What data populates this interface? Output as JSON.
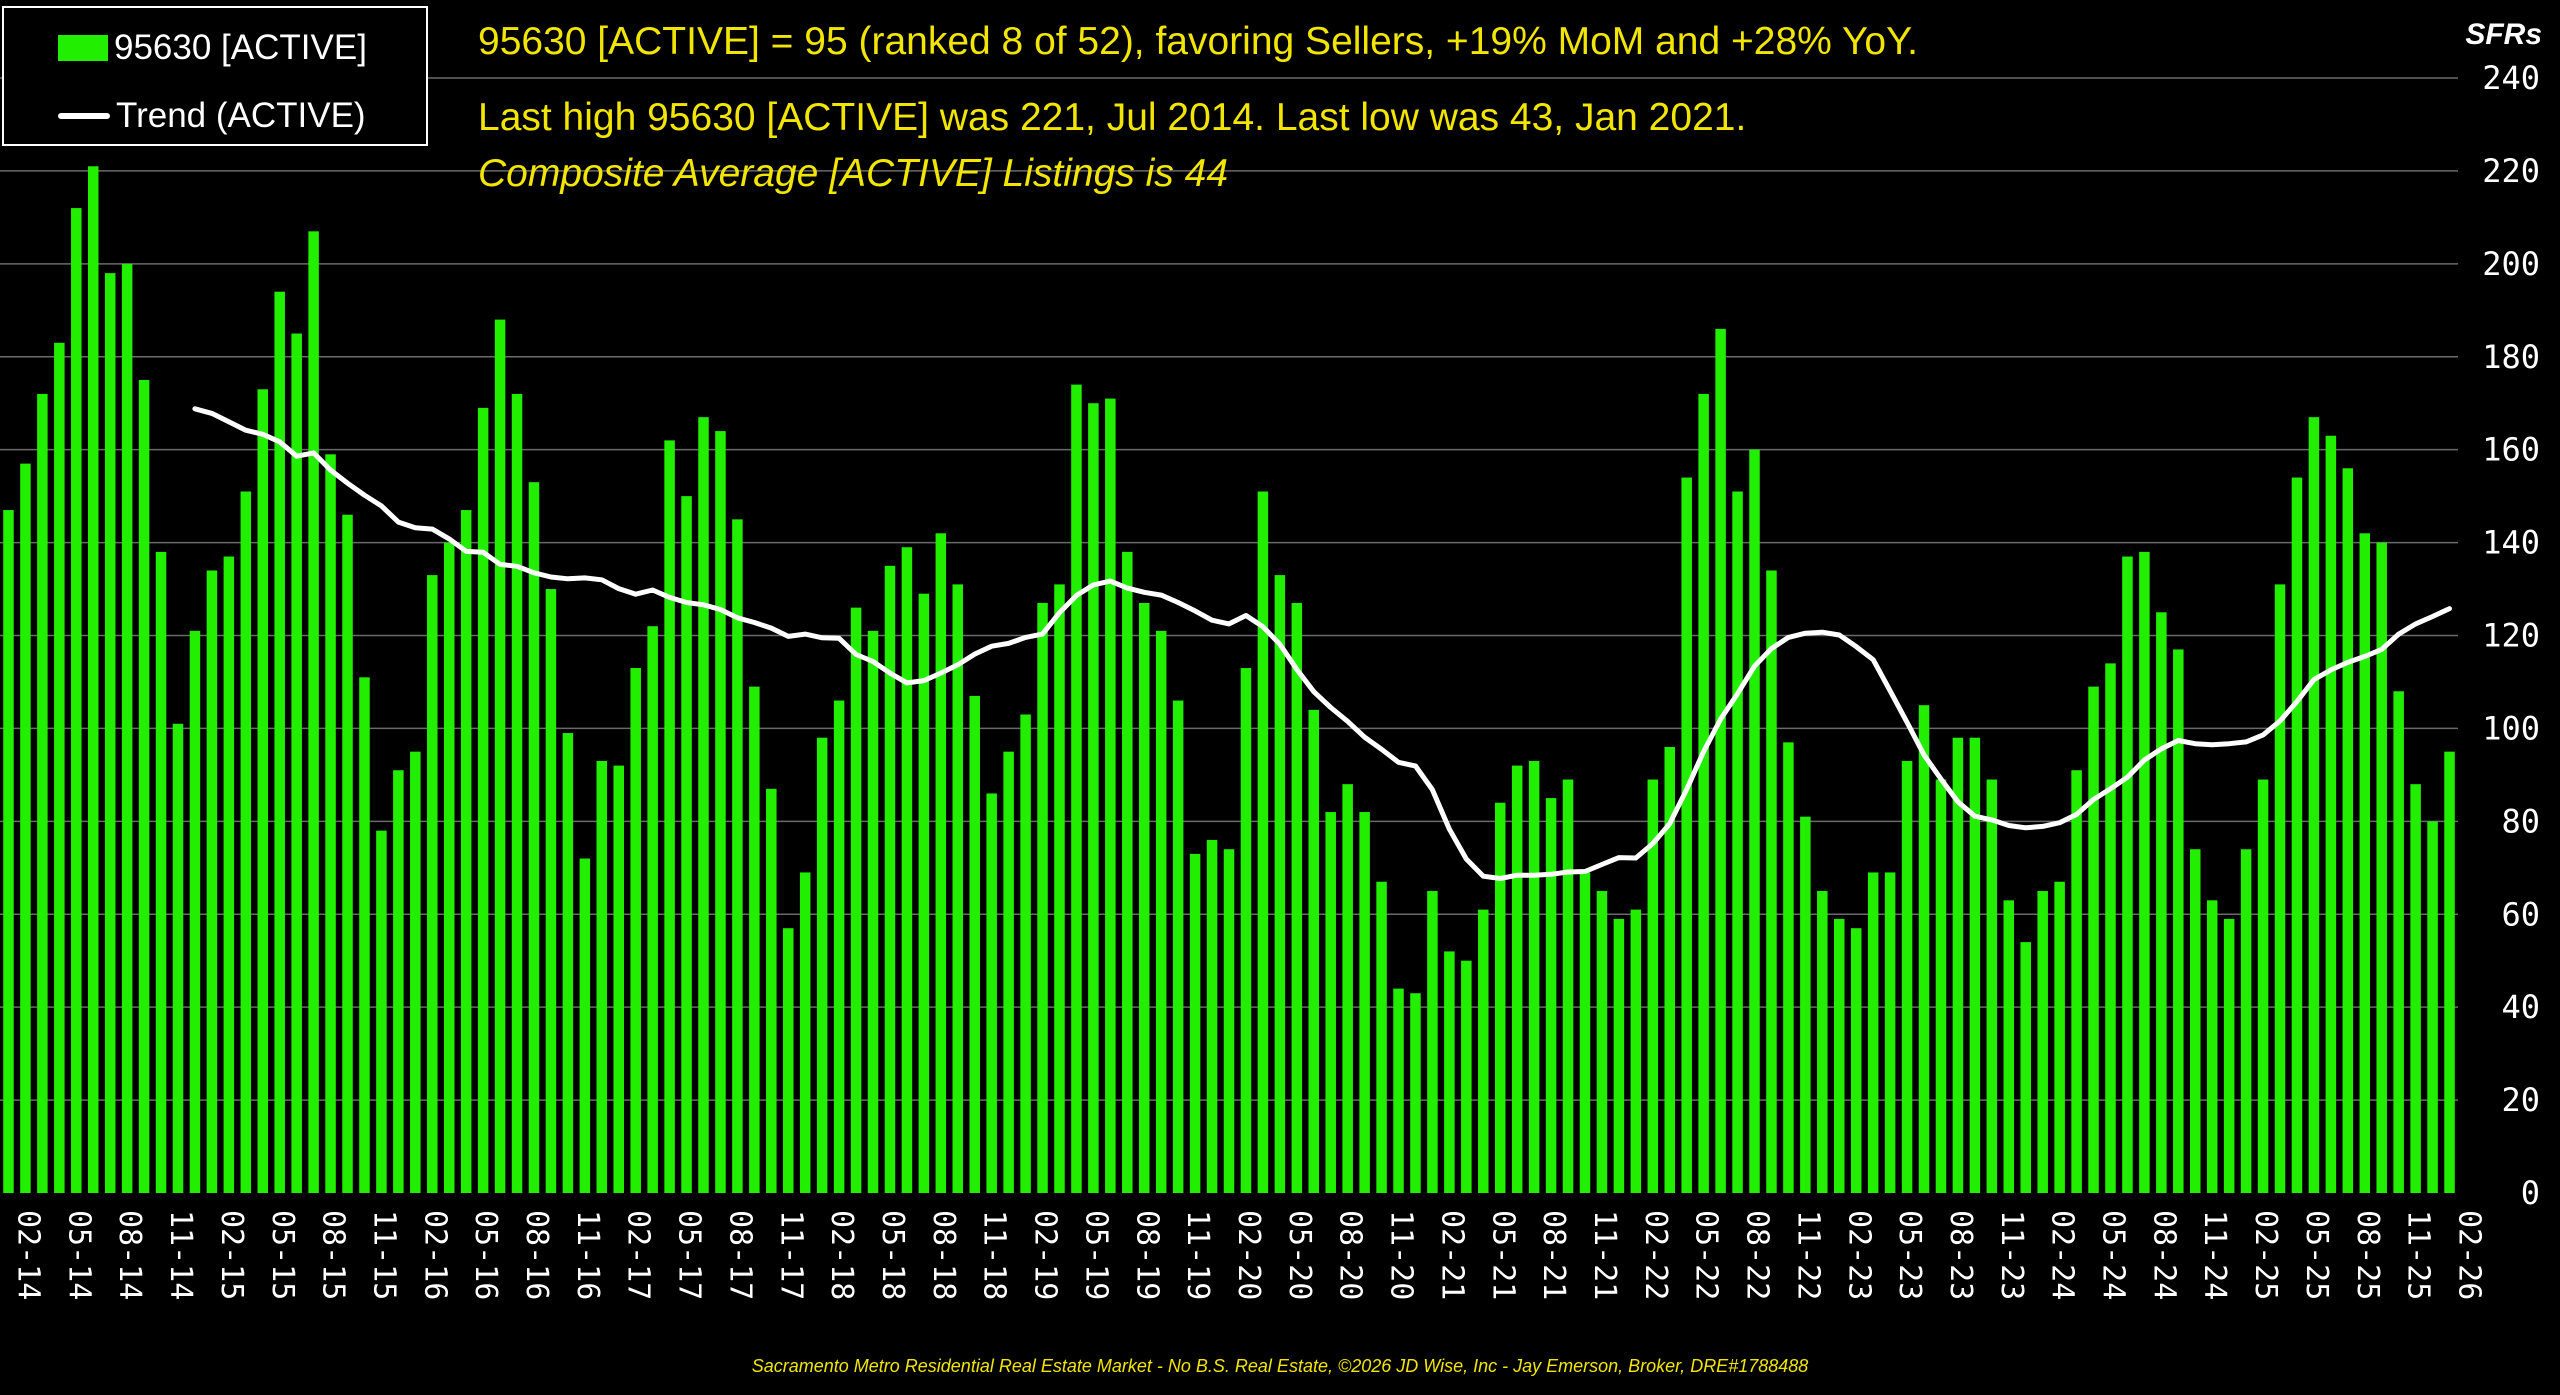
{
  "headline": {
    "line1": "95630 [ACTIVE] = 95 (ranked 8 of 52), favoring Sellers, +19% MoM and +28% YoY.",
    "line2": "Last high 95630 [ACTIVE] was 221, Jul 2014. Last low was 43, Jan 2021.",
    "line3": "Composite Average [ACTIVE] Listings is 44"
  },
  "legend": {
    "bars_label": "95630 [ACTIVE]",
    "trend_label": "Trend (ACTIVE)"
  },
  "unit_label": "SFRs",
  "footer": "Sacramento Metro Residential Real Estate Market - No B.S. Real Estate, ©2026 JD Wise, Inc - Jay Emerson, Broker, DRE#1788488",
  "colors": {
    "bar": "#22ee00",
    "trend": "#ffffff",
    "text": "#f2e600",
    "grid": "#6a6a6a"
  },
  "chart_data": {
    "type": "bar",
    "title": "95630 [ACTIVE]",
    "ylabel": "SFRs",
    "ylim": [
      0,
      240
    ],
    "yticks": [
      0,
      20,
      40,
      60,
      80,
      100,
      120,
      140,
      160,
      180,
      200,
      220,
      240
    ],
    "grid": true,
    "legend_position": "top-left",
    "tick_labels": [
      "02-14",
      "05-14",
      "08-14",
      "11-14",
      "02-15",
      "05-15",
      "08-15",
      "11-15",
      "02-16",
      "05-16",
      "08-16",
      "11-16",
      "02-17",
      "05-17",
      "08-17",
      "11-17",
      "02-18",
      "05-18",
      "08-18",
      "11-18",
      "02-19",
      "05-19",
      "08-19",
      "11-19",
      "02-20",
      "05-20",
      "08-20",
      "11-20",
      "02-21",
      "05-21",
      "08-21",
      "11-21",
      "02-22",
      "05-22",
      "08-22",
      "11-22",
      "02-23",
      "05-23",
      "08-23",
      "11-23",
      "02-24",
      "05-24",
      "08-24",
      "11-24",
      "02-25",
      "05-25",
      "08-25",
      "11-25",
      "02-26"
    ],
    "series": [
      {
        "name": "95630 [ACTIVE]",
        "type": "bar",
        "values": [
          147,
          157,
          172,
          183,
          212,
          221,
          198,
          200,
          175,
          138,
          101,
          121,
          134,
          137,
          151,
          173,
          194,
          185,
          207,
          159,
          146,
          111,
          78,
          91,
          95,
          133,
          140,
          147,
          169,
          188,
          172,
          153,
          130,
          99,
          72,
          93,
          92,
          113,
          122,
          162,
          150,
          167,
          164,
          145,
          109,
          87,
          57,
          69,
          98,
          106,
          126,
          121,
          135,
          139,
          129,
          142,
          131,
          107,
          86,
          95,
          103,
          127,
          131,
          174,
          170,
          171,
          138,
          127,
          121,
          106,
          73,
          76,
          74,
          113,
          151,
          133,
          127,
          104,
          82,
          88,
          82,
          67,
          44,
          43,
          65,
          52,
          50,
          61,
          84,
          92,
          93,
          85,
          89,
          69,
          65,
          59,
          61,
          89,
          96,
          154,
          172,
          186,
          151,
          160,
          134,
          97,
          81,
          65,
          59,
          57,
          69,
          69,
          93,
          105,
          89,
          98,
          98,
          89,
          63,
          54,
          65,
          67,
          91,
          109,
          114,
          137,
          138,
          125,
          117,
          74,
          63,
          59,
          74,
          89,
          131,
          154,
          167,
          163,
          156,
          142,
          140,
          108,
          88,
          80,
          95
        ]
      },
      {
        "name": "Trend (ACTIVE)",
        "type": "line",
        "start_index": 11,
        "values": [
          168.8,
          167.8,
          166.0,
          164.2,
          163.3,
          161.7,
          158.6,
          159.3,
          155.6,
          152.8,
          150.2,
          147.9,
          144.4,
          143.2,
          142.9,
          140.8,
          138.1,
          137.9,
          135.3,
          134.9,
          133.5,
          132.6,
          132.2,
          132.4,
          132.0,
          130.1,
          128.9,
          129.8,
          128.2,
          127.1,
          126.6,
          125.6,
          123.8,
          122.8,
          121.6,
          119.8,
          120.3,
          119.5,
          119.4,
          115.9,
          114.4,
          111.9,
          109.8,
          110.3,
          111.9,
          113.7,
          116.0,
          117.7,
          118.3,
          119.6,
          120.3,
          124.9,
          128.6,
          130.9,
          131.7,
          130.2,
          129.3,
          128.7,
          127.1,
          125.3,
          123.3,
          122.5,
          124.3,
          121.9,
          118.1,
          112.7,
          107.9,
          104.5,
          101.5,
          98.1,
          95.5,
          92.7,
          91.9,
          86.8,
          78.3,
          71.9,
          68.2,
          67.7,
          68.4,
          68.4,
          68.6,
          69.1,
          69.2,
          70.7,
          72.2,
          72.1,
          75.2,
          79.5,
          86.9,
          95.0,
          102.0,
          107.5,
          113.4,
          117.2,
          119.6,
          120.5,
          120.7,
          120.1,
          117.6,
          114.8,
          108.1,
          101.3,
          94.3,
          89.1,
          84.2,
          81.1,
          80.3,
          79.1,
          78.6,
          78.9,
          79.7,
          81.5,
          84.7,
          87.0,
          89.5,
          93.2,
          95.6,
          97.4,
          96.7,
          96.5,
          96.7,
          97.1,
          98.6,
          101.6,
          105.8,
          110.5,
          112.6,
          114.2,
          115.5,
          117.0,
          120.3,
          122.5,
          124.1,
          125.8
        ]
      }
    ]
  }
}
